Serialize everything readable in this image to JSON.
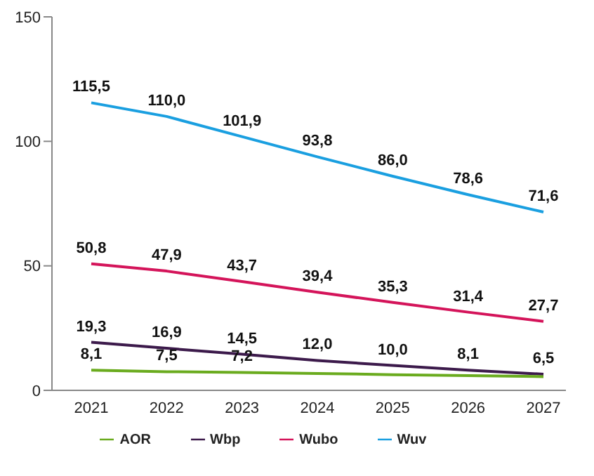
{
  "chart_data": {
    "type": "line",
    "categories": [
      "2021",
      "2022",
      "2023",
      "2024",
      "2025",
      "2026",
      "2027"
    ],
    "series": [
      {
        "name": "Wuv",
        "color": "#1a9fe0",
        "values": [
          115.5,
          110.0,
          101.9,
          93.8,
          86.0,
          78.6,
          71.6
        ],
        "value_labels": [
          "115,5",
          "110,0",
          "101,9",
          "93,8",
          "86,0",
          "78,6",
          "71,6"
        ]
      },
      {
        "name": "Wubo",
        "color": "#d4145a",
        "values": [
          50.8,
          47.9,
          43.7,
          39.4,
          35.3,
          31.4,
          27.7
        ],
        "value_labels": [
          "50,8",
          "47,9",
          "43,7",
          "39,4",
          "35,3",
          "31,4",
          "27,7"
        ]
      },
      {
        "name": "Wbp",
        "color": "#3c1a4b",
        "values": [
          19.3,
          16.9,
          14.5,
          12.0,
          10.0,
          8.1,
          6.5
        ],
        "value_labels": [
          "19,3",
          "16,9",
          "14,5",
          "12,0",
          "10,0",
          "8,1",
          "6,5"
        ]
      },
      {
        "name": "AOR",
        "color": "#6aab1e",
        "values": [
          8.1,
          7.5,
          7.2,
          6.8,
          6.3,
          5.9,
          5.5
        ],
        "value_labels": [
          "8,1",
          "7,5",
          "7,2",
          null,
          null,
          null,
          null
        ]
      }
    ],
    "ylim": [
      0,
      150
    ],
    "yticks": [
      0,
      50,
      100,
      150
    ],
    "legend": "bottom",
    "marker": "none",
    "line_style": "solid"
  }
}
